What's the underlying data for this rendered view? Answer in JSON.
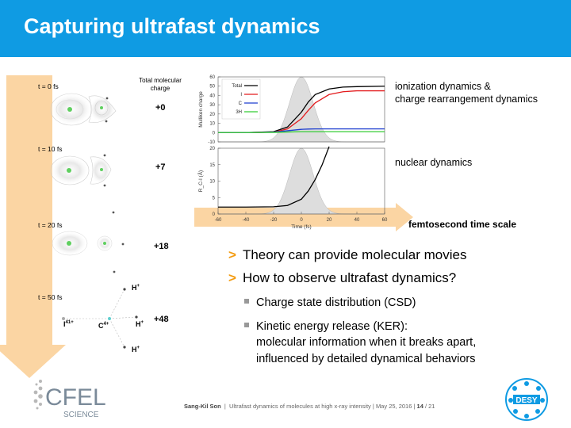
{
  "slide": {
    "title": "Capturing ultrafast dynamics",
    "total_charge_header": "Total molecular charge",
    "snapshots": [
      {
        "time": "t = 0 fs",
        "charge": "+0"
      },
      {
        "time": "t = 10 fs",
        "charge": "+7"
      },
      {
        "time": "t = 20 fs",
        "charge": "+18"
      },
      {
        "time": "t = 50 fs",
        "charge": "+48"
      }
    ],
    "molecule_labels": {
      "iodine": "I",
      "iodine_charge": "41+",
      "carbon": "C",
      "carbon_charge": "4+",
      "hydrogen": "H",
      "hydrogen_charge": "+"
    },
    "notes": {
      "ionization": "ionization dynamics &",
      "ionization2": "charge rearrangement dynamics",
      "nuclear": "nuclear dynamics",
      "timescale": "femtosecond time scale"
    },
    "bullets": [
      "Theory can provide molecular movies",
      "How to observe ultrafast dynamics?"
    ],
    "bullet_marker": ">",
    "sub_bullets": [
      "Charge state distribution (CSD)",
      "Kinetic energy release (KER):",
      "molecular information when it breaks apart,",
      "influenced by detailed dynamical behaviors"
    ],
    "footer": {
      "author": "Sang-Kil Son",
      "sep": "|",
      "talk": "Ultrafast dynamics of molecules at high x-ray intensity",
      "date": "May 25, 2016",
      "page": "14",
      "total": "/ 21"
    },
    "logos": {
      "cfel_top": "CFEL",
      "cfel_bottom": "SCIENCE",
      "desy": "DESY"
    },
    "colors": {
      "title_bar": "#0f9be3",
      "arrow": "#fbd5a3",
      "bullet_marker": "#f39c12",
      "desy_blue": "#0f9be3"
    }
  },
  "chart_data": [
    {
      "type": "line",
      "ylabel": "Mulliken charge",
      "ylim": [
        -10,
        60
      ],
      "yticks": [
        "-10",
        "0",
        "10",
        "20",
        "30",
        "40",
        "50",
        "60"
      ],
      "xlim": [
        -60,
        60
      ],
      "legend_position": "top-left",
      "series": [
        {
          "name": "Total",
          "color": "#000000",
          "x": [
            -60,
            -40,
            -20,
            -10,
            0,
            5,
            10,
            20,
            30,
            40,
            60
          ],
          "y": [
            0,
            0,
            1,
            6,
            22,
            33,
            41,
            47,
            49,
            49.5,
            50
          ]
        },
        {
          "name": "I",
          "color": "#e31a1c",
          "x": [
            -60,
            -40,
            -20,
            -10,
            0,
            5,
            10,
            20,
            30,
            40,
            60
          ],
          "y": [
            0,
            0,
            0.5,
            4,
            15,
            24,
            32,
            41,
            44,
            45,
            45
          ]
        },
        {
          "name": "C",
          "color": "#1f3fcf",
          "x": [
            -60,
            -40,
            -20,
            -10,
            0,
            5,
            10,
            20,
            40,
            60
          ],
          "y": [
            0,
            0,
            0.5,
            2,
            3.5,
            3.8,
            4,
            4,
            4,
            4
          ]
        },
        {
          "name": "3H",
          "color": "#33cc33",
          "x": [
            -60,
            -40,
            -20,
            -10,
            0,
            10,
            20,
            40,
            60
          ],
          "y": [
            0,
            0,
            0.2,
            0.6,
            1,
            1,
            1,
            1,
            1
          ]
        }
      ],
      "pulse_envelope": {
        "center": 0,
        "fwhm": 20,
        "color": "#dddddd"
      }
    },
    {
      "type": "line",
      "ylabel": "R_C-I (Å)",
      "xlabel": "Time (fs)",
      "xlim": [
        -60,
        60
      ],
      "ylim": [
        0,
        20
      ],
      "xticks": [
        "-60",
        "-40",
        "-20",
        "0",
        "20",
        "40",
        "60"
      ],
      "yticks": [
        "0",
        "5",
        "10",
        "15",
        "20"
      ],
      "series": [
        {
          "name": "C-I distance",
          "color": "#000000",
          "x": [
            -60,
            -40,
            -20,
            -10,
            0,
            5,
            10,
            15,
            20
          ],
          "y": [
            2.1,
            2.1,
            2.2,
            2.6,
            4.5,
            7,
            10.5,
            15,
            20.5
          ]
        }
      ],
      "pulse_envelope": {
        "center": 0,
        "fwhm": 20,
        "color": "#dddddd"
      }
    }
  ]
}
